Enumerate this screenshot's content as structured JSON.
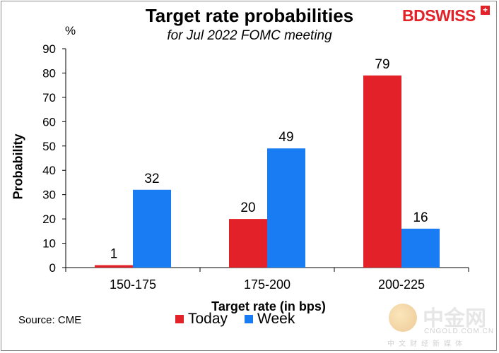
{
  "chart_data": {
    "type": "bar",
    "title": "Target rate probabilities",
    "subtitle": "for Jul 2022 FOMC meeting",
    "unit_label": "%",
    "xlabel": "Target rate (in bps)",
    "ylabel": "Probability",
    "ylim": [
      0,
      90
    ],
    "yticks": [
      "0",
      "10",
      "20",
      "30",
      "40",
      "50",
      "60",
      "70",
      "80",
      "90"
    ],
    "categories": [
      "150-175",
      "175-200",
      "200-225"
    ],
    "series": [
      {
        "name": "Today",
        "color": "#e32129",
        "values": [
          1,
          20,
          79
        ]
      },
      {
        "name": "Week",
        "color": "#1a7cf2",
        "values": [
          32,
          49,
          16
        ]
      }
    ],
    "source": "Source: CME"
  },
  "brand": {
    "name": "BDSWISS",
    "mark": "+"
  },
  "watermark": {
    "cn": "中金网",
    "en": "CNGOLD.COM.CN",
    "sub": "中文财经新媒体"
  }
}
